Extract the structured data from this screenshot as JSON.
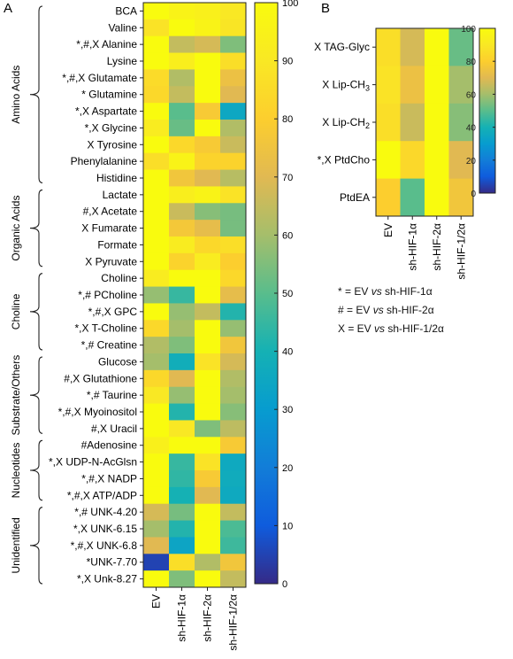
{
  "panel_a": {
    "label": "A"
  },
  "panel_b": {
    "label": "B"
  },
  "chart_data": [
    {
      "type": "heatmap",
      "panel": "A",
      "columns": [
        "EV",
        "sh-HIF-1α",
        "sh-HIF-2α",
        "sh-HIF-1/2α"
      ],
      "rows": [
        "BCA",
        "Valine",
        "*,#,X Alanine",
        "Lysine",
        "*,#,X Glutamate",
        "* Glutamine",
        "*,X Aspartate",
        "*,X Glycine",
        "X Tyrosine",
        "Phenylalanine",
        "Histidine",
        "Lactate",
        "#,X Acetate",
        "X Fumarate",
        "Formate",
        "X Pyruvate",
        "Choline",
        "*,# PCholine",
        "*,#,X GPC",
        "*,X T-Choline",
        "*,# Creatine",
        "Glucose",
        "#,X Glutathione",
        "*,# Taurine",
        "*,#,X Myoinositol",
        "#,X Uracil",
        "#Adenosine",
        "*,X UDP-N-AcGlsn",
        "*,#,X NADP",
        "*,#,X ATP/ADP",
        "*,# UNK-4.20",
        "*,X UNK-6.15",
        "*,#,X UNK-6.8",
        "*UNK-7.70",
        "*,X Unk-8.27"
      ],
      "values": [
        [
          100,
          96,
          94,
          90
        ],
        [
          88,
          100,
          96,
          89
        ],
        [
          100,
          65,
          68,
          55
        ],
        [
          100,
          93,
          100,
          86
        ],
        [
          85,
          62,
          100,
          74
        ],
        [
          84,
          65,
          100,
          70
        ],
        [
          100,
          50,
          78,
          35
        ],
        [
          92,
          52,
          100,
          62
        ],
        [
          100,
          84,
          78,
          66
        ],
        [
          86,
          96,
          82,
          82
        ],
        [
          100,
          76,
          70,
          63
        ],
        [
          100,
          93,
          96,
          88
        ],
        [
          100,
          66,
          56,
          54
        ],
        [
          100,
          77,
          72,
          54
        ],
        [
          100,
          92,
          84,
          86
        ],
        [
          100,
          82,
          92,
          80
        ],
        [
          92,
          100,
          100,
          84
        ],
        [
          58,
          45,
          100,
          72
        ],
        [
          100,
          58,
          65,
          42
        ],
        [
          84,
          60,
          100,
          58
        ],
        [
          62,
          55,
          100,
          76
        ],
        [
          60,
          38,
          88,
          68
        ],
        [
          84,
          70,
          100,
          62
        ],
        [
          90,
          58,
          100,
          60
        ],
        [
          100,
          42,
          100,
          56
        ],
        [
          100,
          90,
          55,
          64
        ],
        [
          94,
          100,
          100,
          78
        ],
        [
          100,
          45,
          88,
          36
        ],
        [
          100,
          44,
          78,
          37
        ],
        [
          100,
          40,
          70,
          36
        ],
        [
          68,
          54,
          100,
          65
        ],
        [
          60,
          42,
          100,
          48
        ],
        [
          70,
          34,
          100,
          46
        ],
        [
          5,
          86,
          62,
          76
        ],
        [
          100,
          55,
          100,
          65
        ]
      ],
      "groups": [
        "Amino Acids",
        "Organic Acids",
        "Choline",
        "Substrate/Others",
        "Nucleotides",
        "Unidentified"
      ],
      "colorbar": {
        "min": 0,
        "max": 100,
        "ticks": [
          0,
          10,
          20,
          30,
          40,
          50,
          60,
          70,
          80,
          90,
          100
        ]
      },
      "colormap": "parula"
    },
    {
      "type": "heatmap",
      "panel": "B",
      "columns": [
        "EV",
        "sh-HIF-1α",
        "sh-HIF-2α",
        "sh-HIF-1/2α"
      ],
      "rows": [
        {
          "prefix": "X TAG-Glyc",
          "sub": ""
        },
        {
          "prefix": "X Lip-CH",
          "sub": "3"
        },
        {
          "prefix": "X Lip-CH",
          "sub": "2"
        },
        {
          "prefix": "*,X PtdCho",
          "sub": ""
        },
        {
          "prefix": "PtdEA",
          "sub": ""
        }
      ],
      "values": [
        [
          86,
          68,
          100,
          52
        ],
        [
          88,
          74,
          100,
          60
        ],
        [
          86,
          66,
          100,
          56
        ],
        [
          100,
          84,
          100,
          70
        ],
        [
          80,
          50,
          100,
          76
        ]
      ],
      "colorbar": {
        "min": 0,
        "max": 100,
        "ticks": [
          0,
          20,
          40,
          60,
          80,
          100
        ]
      },
      "colormap": "parula"
    }
  ],
  "key": [
    {
      "symbol": "* = EV",
      "vs": "vs",
      "target": "sh-HIF-1α"
    },
    {
      "symbol": "# = EV",
      "vs": "vs",
      "target": "sh-HIF-2α"
    },
    {
      "symbol": "X = EV",
      "vs": "vs",
      "target": "sh-HIF-1/2α"
    }
  ]
}
